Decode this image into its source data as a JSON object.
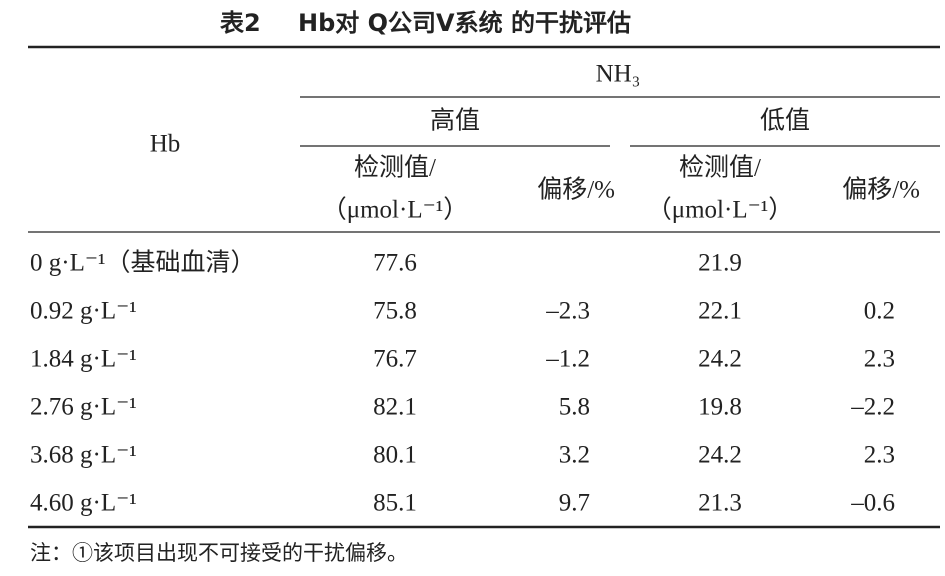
{
  "title": {
    "label": "表2",
    "text": "Hb对 Q公司V系统 的干扰评估"
  },
  "table": {
    "stub_header": "Hb",
    "spanner": "NH₃",
    "groups": [
      {
        "name": "高值",
        "measured": [
          "检测值/",
          "（μmol·L⁻¹）"
        ],
        "bias": "偏移/%"
      },
      {
        "name": "低值",
        "measured": [
          "检测值/",
          "（μmol·L⁻¹）"
        ],
        "bias": "偏移/%"
      }
    ],
    "rows": [
      {
        "hb": "0 g·L⁻¹（基础血清）",
        "cells": [
          {
            "measured": "77.6"
          },
          {
            "measured": "21.9"
          }
        ]
      },
      {
        "hb": "0.92 g·L⁻¹",
        "cells": [
          {
            "measured": "75.8",
            "bias": "–2.3"
          },
          {
            "measured": "22.1",
            "bias": "0.2"
          }
        ]
      },
      {
        "hb": "1.84 g·L⁻¹",
        "cells": [
          {
            "measured": "76.7",
            "bias": "–1.2"
          },
          {
            "measured": "24.2",
            "bias": "2.3"
          }
        ]
      },
      {
        "hb": "2.76 g·L⁻¹",
        "cells": [
          {
            "measured": "82.1",
            "bias": "5.8"
          },
          {
            "measured": "19.8",
            "bias": "–2.2"
          }
        ]
      },
      {
        "hb": "3.68 g·L⁻¹",
        "cells": [
          {
            "measured": "80.1",
            "bias": "3.2"
          },
          {
            "measured": "24.2",
            "bias": "2.3"
          }
        ]
      },
      {
        "hb": "4.60 g·L⁻¹",
        "cells": [
          {
            "measured": "85.1",
            "bias": "9.7"
          },
          {
            "measured": "21.3",
            "bias": "–0.6"
          }
        ]
      }
    ]
  },
  "note": "注：①该项目出现不可接受的干扰偏移。"
}
